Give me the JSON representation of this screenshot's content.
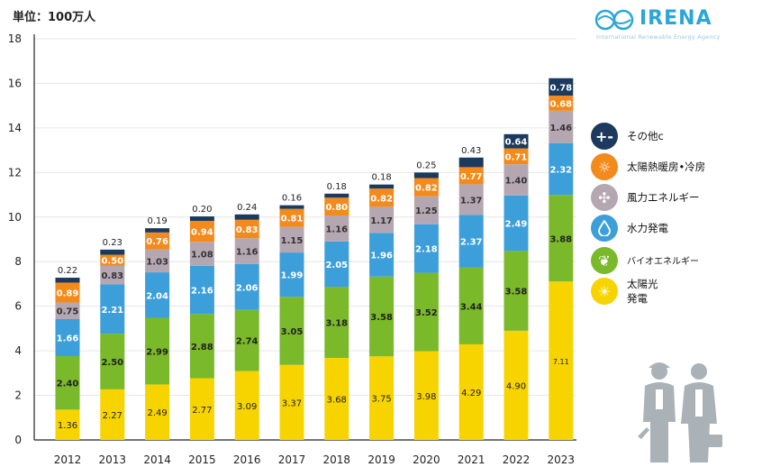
{
  "unit_label": "単位：100万人",
  "logo": {
    "name": "IRENA",
    "subtitle": "International Renewable Energy Agency"
  },
  "colors": {
    "solar": "#f7d400",
    "bio": "#7ab929",
    "hydro": "#3d9fd9",
    "wind": "#b5a7b2",
    "heat": "#f28a1c",
    "other": "#1b3a5e",
    "axis": "#222222",
    "grid": "#e6e6e6"
  },
  "chart_data": {
    "type": "bar",
    "stacked": true,
    "categories": [
      "2012",
      "2013",
      "2014",
      "2015",
      "2016",
      "2017",
      "2018",
      "2019",
      "2020",
      "2021",
      "2022",
      "2023"
    ],
    "ylim": [
      0,
      18
    ],
    "yticks": [
      0,
      2,
      4,
      6,
      8,
      10,
      12,
      14,
      16,
      18
    ],
    "grid": true,
    "legend_position": "right",
    "series": [
      {
        "key": "solar",
        "name": "太陽光発電",
        "values": [
          1.36,
          2.27,
          2.49,
          2.77,
          3.09,
          3.37,
          3.68,
          3.75,
          3.98,
          4.29,
          4.9,
          7.11
        ]
      },
      {
        "key": "bio",
        "name": "バイオエネルギー",
        "values": [
          2.4,
          2.5,
          2.99,
          2.88,
          2.74,
          3.05,
          3.18,
          3.58,
          3.52,
          3.44,
          3.58,
          3.88
        ]
      },
      {
        "key": "hydro",
        "name": "水力発電",
        "values": [
          1.66,
          2.21,
          2.04,
          2.16,
          2.06,
          1.99,
          2.05,
          1.96,
          2.18,
          2.37,
          2.49,
          2.32
        ]
      },
      {
        "key": "wind",
        "name": "風力エネルギー",
        "values": [
          0.75,
          0.83,
          1.03,
          1.08,
          1.16,
          1.15,
          1.16,
          1.17,
          1.25,
          1.37,
          1.4,
          1.46
        ]
      },
      {
        "key": "heat",
        "name": "太陽熱暖房•冷房",
        "values": [
          0.89,
          0.5,
          0.76,
          0.94,
          0.83,
          0.81,
          0.8,
          0.82,
          0.82,
          0.77,
          0.71,
          0.68
        ]
      },
      {
        "key": "other",
        "name": "その他c",
        "values": [
          0.22,
          0.23,
          0.19,
          0.2,
          0.24,
          0.16,
          0.18,
          0.18,
          0.25,
          0.43,
          0.64,
          0.78
        ]
      }
    ],
    "data_labels": {
      "solar": [
        "1.36",
        "2.27",
        "2.49",
        "2.77",
        "3.09",
        "3.37",
        "3.68",
        "3.75",
        "3.98",
        "4.29",
        "4.90",
        "7.11"
      ],
      "bio": [
        "2.40",
        "2.50",
        "2.99",
        "2.88",
        "2.74",
        "3.05",
        "3.18",
        "3.58",
        "3.52",
        "3.44",
        "3.58",
        "3.88"
      ],
      "hydro": [
        "1.66",
        "2.21",
        "2.04",
        "2.16",
        "2.06",
        "1.99",
        "2.05",
        "1.96",
        "2.18",
        "2.37",
        "2.49",
        "2.32"
      ],
      "wind": [
        "0.75",
        "0.83",
        "1.03",
        "1.08",
        "1.16",
        "1.15",
        "1.16",
        "1.17",
        "1.25",
        "1.37",
        "1.40",
        "1.46"
      ],
      "heat": [
        "0.89",
        "0.50",
        "0.76",
        "0.94",
        "0.83",
        "0.81",
        "0.80",
        "0.82",
        "0.82",
        "0.77",
        "0.71",
        "0.68"
      ],
      "other": [
        "0.22",
        "0.23",
        "0.19",
        "0.20",
        "0.24",
        "0.16",
        "0.18",
        "0.18",
        "0.25",
        "0.43",
        "0.64",
        "0.78"
      ]
    }
  },
  "legend": [
    {
      "key": "other",
      "label": "その他c",
      "icon": "plus-minus-icon"
    },
    {
      "key": "heat",
      "label": "太陽熱暖房•冷房",
      "icon": "sun-outline-icon"
    },
    {
      "key": "wind",
      "label": "風力エネルギー",
      "icon": "wind-turbine-icon"
    },
    {
      "key": "hydro",
      "label": "水力発電",
      "icon": "water-drop-icon"
    },
    {
      "key": "bio",
      "label": "バイオエネルギー",
      "icon": "leaf-icon"
    },
    {
      "key": "solar",
      "label": "太陽光\n発電",
      "icon": "sun-icon"
    }
  ]
}
